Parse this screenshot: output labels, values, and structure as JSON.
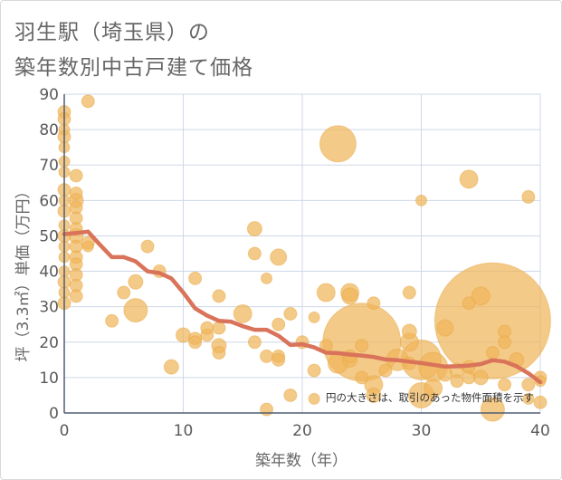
{
  "title_line1": "羽生駅（埼玉県）の",
  "title_line2": "築年数別中古戸建て価格",
  "colors": {
    "bubble": "#f0b65a",
    "line": "#d9735a",
    "grid": "#cfd8e8",
    "axis": "#4f5d75"
  },
  "chart_data": {
    "type": "scatter",
    "xlabel": "築年数（年）",
    "ylabel": "坪（3.3㎡）単価（万円）",
    "xlim": [
      0,
      40
    ],
    "ylim": [
      0,
      90
    ],
    "x_ticks": [
      0,
      10,
      20,
      30,
      40
    ],
    "y_ticks": [
      0,
      10,
      20,
      30,
      40,
      50,
      60,
      70,
      80,
      90
    ],
    "grid": true,
    "annotation": "円の大きさは、取引のあった物件面積を示す",
    "series": [
      {
        "type": "bubble",
        "points": [
          {
            "x": 0,
            "y": 85,
            "r": 7
          },
          {
            "x": 0,
            "y": 83,
            "r": 7
          },
          {
            "x": 0,
            "y": 80,
            "r": 6
          },
          {
            "x": 0,
            "y": 78,
            "r": 7
          },
          {
            "x": 0,
            "y": 75,
            "r": 6
          },
          {
            "x": 0,
            "y": 71,
            "r": 6
          },
          {
            "x": 0,
            "y": 68,
            "r": 6
          },
          {
            "x": 0,
            "y": 63,
            "r": 7
          },
          {
            "x": 0,
            "y": 60,
            "r": 6
          },
          {
            "x": 0,
            "y": 57,
            "r": 7
          },
          {
            "x": 0,
            "y": 53,
            "r": 6
          },
          {
            "x": 0,
            "y": 50,
            "r": 7
          },
          {
            "x": 0,
            "y": 47,
            "r": 6
          },
          {
            "x": 0,
            "y": 44,
            "r": 6
          },
          {
            "x": 0,
            "y": 40,
            "r": 6
          },
          {
            "x": 0,
            "y": 37,
            "r": 7
          },
          {
            "x": 0,
            "y": 34,
            "r": 6
          },
          {
            "x": 0,
            "y": 31,
            "r": 7
          },
          {
            "x": 1,
            "y": 67,
            "r": 7
          },
          {
            "x": 1,
            "y": 62,
            "r": 7
          },
          {
            "x": 1,
            "y": 60,
            "r": 8
          },
          {
            "x": 1,
            "y": 58,
            "r": 7
          },
          {
            "x": 1,
            "y": 55,
            "r": 7
          },
          {
            "x": 1,
            "y": 52,
            "r": 7
          },
          {
            "x": 1,
            "y": 50,
            "r": 8
          },
          {
            "x": 1,
            "y": 47,
            "r": 7
          },
          {
            "x": 1,
            "y": 44,
            "r": 7
          },
          {
            "x": 1,
            "y": 42,
            "r": 7
          },
          {
            "x": 1,
            "y": 39,
            "r": 7
          },
          {
            "x": 1,
            "y": 36,
            "r": 7
          },
          {
            "x": 1,
            "y": 33,
            "r": 7
          },
          {
            "x": 2,
            "y": 88,
            "r": 7
          },
          {
            "x": 2,
            "y": 48,
            "r": 7
          },
          {
            "x": 2,
            "y": 47,
            "r": 6
          },
          {
            "x": 4,
            "y": 26,
            "r": 7
          },
          {
            "x": 5,
            "y": 34,
            "r": 7
          },
          {
            "x": 6,
            "y": 37,
            "r": 8
          },
          {
            "x": 6,
            "y": 29,
            "r": 13
          },
          {
            "x": 7,
            "y": 47,
            "r": 7
          },
          {
            "x": 8,
            "y": 40,
            "r": 7
          },
          {
            "x": 9,
            "y": 13,
            "r": 8
          },
          {
            "x": 10,
            "y": 22,
            "r": 8
          },
          {
            "x": 11,
            "y": 38,
            "r": 7
          },
          {
            "x": 11,
            "y": 21,
            "r": 7
          },
          {
            "x": 11,
            "y": 20,
            "r": 7
          },
          {
            "x": 12,
            "y": 22,
            "r": 7
          },
          {
            "x": 12,
            "y": 24,
            "r": 7
          },
          {
            "x": 13,
            "y": 33,
            "r": 7
          },
          {
            "x": 13,
            "y": 24,
            "r": 7
          },
          {
            "x": 13,
            "y": 19,
            "r": 8
          },
          {
            "x": 13,
            "y": 17,
            "r": 7
          },
          {
            "x": 15,
            "y": 28,
            "r": 10
          },
          {
            "x": 16,
            "y": 52,
            "r": 8
          },
          {
            "x": 16,
            "y": 45,
            "r": 7
          },
          {
            "x": 16,
            "y": 20,
            "r": 7
          },
          {
            "x": 17,
            "y": 38,
            "r": 6
          },
          {
            "x": 17,
            "y": 16,
            "r": 7
          },
          {
            "x": 17,
            "y": 1,
            "r": 7
          },
          {
            "x": 18,
            "y": 44,
            "r": 9
          },
          {
            "x": 18,
            "y": 25,
            "r": 7
          },
          {
            "x": 18,
            "y": 16,
            "r": 7
          },
          {
            "x": 18,
            "y": 15,
            "r": 7
          },
          {
            "x": 19,
            "y": 28,
            "r": 7
          },
          {
            "x": 19,
            "y": 5,
            "r": 7
          },
          {
            "x": 20,
            "y": 20,
            "r": 7
          },
          {
            "x": 21,
            "y": 27,
            "r": 6
          },
          {
            "x": 21,
            "y": 12,
            "r": 7
          },
          {
            "x": 21,
            "y": 4,
            "r": 6
          },
          {
            "x": 22,
            "y": 34,
            "r": 10
          },
          {
            "x": 22,
            "y": 19,
            "r": 7
          },
          {
            "x": 23,
            "y": 76,
            "r": 20
          },
          {
            "x": 23,
            "y": 14,
            "r": 11
          },
          {
            "x": 24,
            "y": 34,
            "r": 10
          },
          {
            "x": 24,
            "y": 33,
            "r": 9
          },
          {
            "x": 24,
            "y": 16,
            "r": 7
          },
          {
            "x": 24,
            "y": 15,
            "r": 8
          },
          {
            "x": 25,
            "y": 20,
            "r": 43
          },
          {
            "x": 25,
            "y": 19,
            "r": 7
          },
          {
            "x": 25,
            "y": 10,
            "r": 7
          },
          {
            "x": 26,
            "y": 31,
            "r": 7
          },
          {
            "x": 26,
            "y": 8,
            "r": 10
          },
          {
            "x": 26,
            "y": 5,
            "r": 8
          },
          {
            "x": 27,
            "y": 12,
            "r": 7
          },
          {
            "x": 28,
            "y": 15,
            "r": 12
          },
          {
            "x": 29,
            "y": 34,
            "r": 7
          },
          {
            "x": 29,
            "y": 23,
            "r": 8
          },
          {
            "x": 29,
            "y": 20,
            "r": 10
          },
          {
            "x": 29,
            "y": 14,
            "r": 7
          },
          {
            "x": 30,
            "y": 60,
            "r": 6
          },
          {
            "x": 30,
            "y": 15,
            "r": 22
          },
          {
            "x": 30,
            "y": 5,
            "r": 14
          },
          {
            "x": 31,
            "y": 13,
            "r": 16
          },
          {
            "x": 31,
            "y": 7,
            "r": 10
          },
          {
            "x": 32,
            "y": 24,
            "r": 9
          },
          {
            "x": 32,
            "y": 11,
            "r": 8
          },
          {
            "x": 33,
            "y": 12,
            "r": 8
          },
          {
            "x": 33,
            "y": 9,
            "r": 7
          },
          {
            "x": 34,
            "y": 66,
            "r": 10
          },
          {
            "x": 34,
            "y": 31,
            "r": 7
          },
          {
            "x": 34,
            "y": 13,
            "r": 7
          },
          {
            "x": 34,
            "y": 10,
            "r": 7
          },
          {
            "x": 35,
            "y": 33,
            "r": 10
          },
          {
            "x": 35,
            "y": 10,
            "r": 8
          },
          {
            "x": 36,
            "y": 26,
            "r": 64
          },
          {
            "x": 36,
            "y": 17,
            "r": 7
          },
          {
            "x": 36,
            "y": 1,
            "r": 13
          },
          {
            "x": 37,
            "y": 23,
            "r": 7
          },
          {
            "x": 37,
            "y": 20,
            "r": 7
          },
          {
            "x": 37,
            "y": 8,
            "r": 7
          },
          {
            "x": 38,
            "y": 15,
            "r": 8
          },
          {
            "x": 39,
            "y": 61,
            "r": 7
          },
          {
            "x": 39,
            "y": 8,
            "r": 7
          },
          {
            "x": 39,
            "y": 4,
            "r": 6
          },
          {
            "x": 40,
            "y": 10,
            "r": 7
          },
          {
            "x": 40,
            "y": 9,
            "r": 6
          },
          {
            "x": 40,
            "y": 3,
            "r": 7
          }
        ]
      },
      {
        "type": "line",
        "x": [
          0,
          1,
          2,
          3,
          4,
          5,
          6,
          7,
          8,
          9,
          10,
          11,
          12,
          13,
          14,
          15,
          16,
          17,
          18,
          19,
          20,
          21,
          22,
          23,
          24,
          25,
          26,
          27,
          28,
          29,
          30,
          31,
          32,
          33,
          34,
          35,
          36,
          37,
          38,
          39,
          40
        ],
        "y": [
          50.5,
          50.8,
          51.2,
          47.5,
          44,
          44,
          42.8,
          40,
          39.5,
          38,
          34,
          29.5,
          27.5,
          26,
          25.8,
          24.5,
          23.5,
          23.5,
          21.8,
          19.2,
          19.4,
          18.5,
          17,
          16.9,
          16.5,
          16.2,
          15.8,
          15.1,
          14.9,
          14.5,
          14.1,
          13.6,
          13.1,
          13.2,
          13.4,
          13.8,
          14.9,
          14.5,
          13.2,
          11.2,
          8.7
        ]
      }
    ]
  }
}
